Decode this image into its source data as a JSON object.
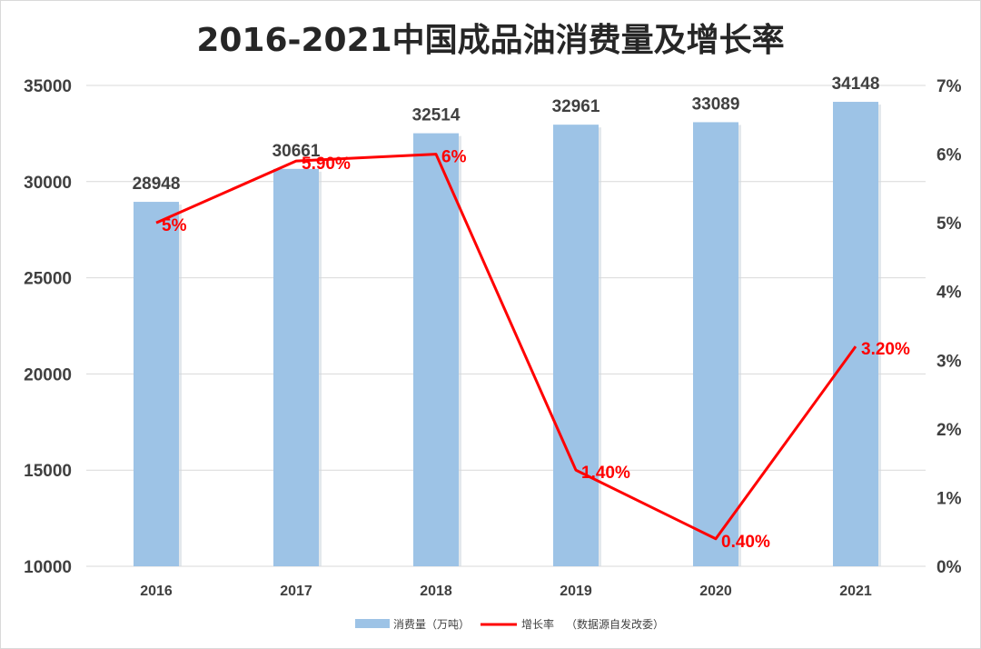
{
  "chart_data": {
    "type": "bar",
    "title": "2016-2021中国成品油消费量及增长率",
    "categories": [
      "2016",
      "2017",
      "2018",
      "2019",
      "2020",
      "2021"
    ],
    "series": [
      {
        "name": "消费量（万吨）",
        "type": "bar",
        "axis": "left",
        "color": "#9dc3e6",
        "values": [
          28948,
          30661,
          32514,
          32961,
          33089,
          34148
        ],
        "labels": [
          "28948",
          "30661",
          "32514",
          "32961",
          "33089",
          "34148"
        ]
      },
      {
        "name": "增长率",
        "type": "line",
        "axis": "right",
        "color": "#ff0000",
        "values": [
          5.0,
          5.9,
          6.0,
          1.4,
          0.4,
          3.2
        ],
        "labels": [
          "5%",
          "5.90%",
          "6%",
          "1.40%",
          "0.40%",
          "3.20%"
        ]
      }
    ],
    "y_left": {
      "lim": [
        10000,
        35000
      ],
      "ticks": [
        10000,
        15000,
        20000,
        25000,
        30000,
        35000
      ],
      "tick_labels": [
        "10000",
        "15000",
        "20000",
        "25000",
        "30000",
        "35000"
      ]
    },
    "y_right": {
      "lim": [
        0,
        7
      ],
      "ticks": [
        0,
        1,
        2,
        3,
        4,
        5,
        6,
        7
      ],
      "tick_labels": [
        "0%",
        "1%",
        "2%",
        "3%",
        "4%",
        "5%",
        "6%",
        "7%"
      ]
    },
    "grid": true,
    "legend": {
      "position": "bottom",
      "note": "（数据源自发改委）"
    }
  }
}
